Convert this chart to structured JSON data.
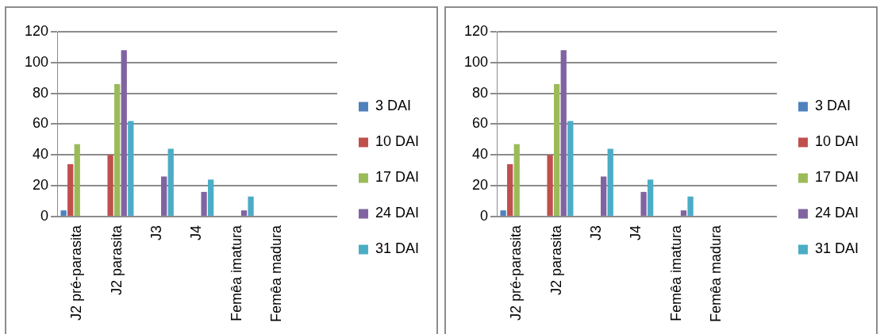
{
  "chart_data": [
    {
      "type": "bar",
      "categories": [
        "J2 pré-parasita",
        "J2 parasita",
        "J3",
        "J4",
        "Femêa imatura",
        "Femêa madura",
        null
      ],
      "ylim": [
        0,
        120
      ],
      "yticks": [
        0,
        20,
        40,
        60,
        80,
        100,
        120
      ],
      "grid": "y",
      "legend": "right",
      "series": [
        {
          "name": "3 DAI",
          "color": "#4f81bd",
          "values": [
            4,
            0,
            0,
            0,
            0,
            0,
            null
          ]
        },
        {
          "name": "10 DAI",
          "color": "#c0504d",
          "values": [
            34,
            40,
            0,
            0,
            0,
            0,
            null
          ]
        },
        {
          "name": "17 DAI",
          "color": "#9bbb59",
          "values": [
            47,
            86,
            0,
            0,
            0,
            0,
            null
          ]
        },
        {
          "name": "24 DAI",
          "color": "#8064a2",
          "values": [
            0,
            108,
            26,
            16,
            4,
            0,
            null
          ]
        },
        {
          "name": "31 DAI",
          "color": "#4bacc6",
          "values": [
            0,
            62,
            44,
            24,
            13,
            0,
            null
          ]
        }
      ]
    },
    {
      "type": "bar",
      "categories": [
        "J2 pré-parasita",
        "J2 parasita",
        "J3",
        "J4",
        "Femêa imatura",
        "Femêa madura",
        null
      ],
      "ylim": [
        0,
        120
      ],
      "yticks": [
        0,
        20,
        40,
        60,
        80,
        100,
        120
      ],
      "grid": "y",
      "legend": "right",
      "series": [
        {
          "name": "3 DAI",
          "color": "#4f81bd",
          "values": [
            4,
            0,
            0,
            0,
            0,
            0,
            null
          ]
        },
        {
          "name": "10 DAI",
          "color": "#c0504d",
          "values": [
            34,
            40,
            0,
            0,
            0,
            0,
            null
          ]
        },
        {
          "name": "17 DAI",
          "color": "#9bbb59",
          "values": [
            47,
            86,
            0,
            0,
            0,
            0,
            null
          ]
        },
        {
          "name": "24 DAI",
          "color": "#8064a2",
          "values": [
            0,
            108,
            26,
            16,
            4,
            0,
            null
          ]
        },
        {
          "name": "31 DAI",
          "color": "#4bacc6",
          "values": [
            0,
            62,
            44,
            24,
            13,
            0,
            null
          ]
        }
      ]
    }
  ]
}
